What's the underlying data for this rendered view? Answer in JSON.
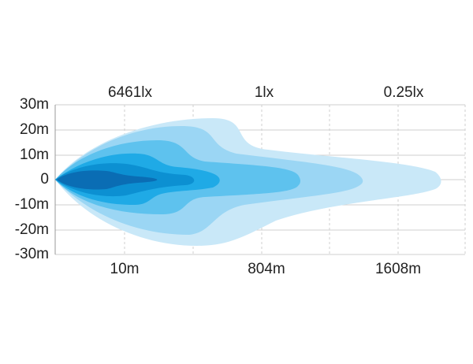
{
  "top_labels": [
    "6461lx",
    "1lx",
    "0.25lx"
  ],
  "y_labels": [
    "30m",
    "20m",
    "10m",
    "0",
    "-10m",
    "-20m",
    "-30m"
  ],
  "bottom_labels": [
    "10m",
    "804m",
    "1608m"
  ]
}
